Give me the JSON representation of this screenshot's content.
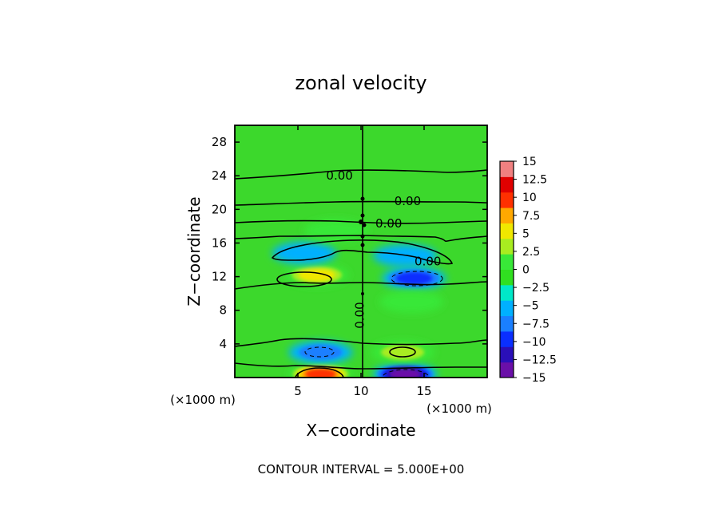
{
  "chart_data": {
    "type": "heatmap",
    "title": "zonal velocity",
    "xlabel": "X−coordinate",
    "ylabel": "Z−coordinate",
    "x_unit_label": "(×1000 m)",
    "y_unit_label": "(×1000 m)",
    "xlim": [
      0,
      20
    ],
    "ylim": [
      0,
      30
    ],
    "x_ticks": [
      5,
      10,
      15
    ],
    "y_ticks": [
      4,
      8,
      12,
      16,
      20,
      24,
      28
    ],
    "colorbar": {
      "levels": [
        -15,
        -12.5,
        -10,
        -7.5,
        -5,
        -2.5,
        0,
        2.5,
        5,
        7.5,
        10,
        12.5,
        15
      ],
      "tick_labels": [
        "15",
        "12.5",
        "10",
        "7.5",
        "5",
        "2.5",
        "0",
        "−2.5",
        "−5",
        "−7.5",
        "−10",
        "−12.5",
        "−15"
      ],
      "colors": [
        "#6a0fa8",
        "#2a0fb8",
        "#0a2fff",
        "#1a7fff",
        "#00b0ff",
        "#00e8c8",
        "#30e020",
        "#38e838",
        "#a8ec20",
        "#f0e800",
        "#ffa800",
        "#ff3000",
        "#e00000",
        "#f08080"
      ]
    },
    "background_color": "#3cd82c",
    "features": [
      {
        "type": "positive",
        "x": 6.5,
        "z": 12.2,
        "amplitude": 9.5
      },
      {
        "type": "negative",
        "x": 14.2,
        "z": 11.8,
        "amplitude": -8.0
      },
      {
        "type": "positive",
        "x": 6.8,
        "z": 0.4,
        "amplitude": 14.0
      },
      {
        "type": "negative",
        "x": 13.5,
        "z": 0.4,
        "amplitude": -13.0
      },
      {
        "type": "negative",
        "x": 6.8,
        "z": 3.0,
        "amplitude": -6.0
      },
      {
        "type": "positive",
        "x": 13.3,
        "z": 3.0,
        "amplitude": 6.5
      },
      {
        "type": "negative",
        "x": 5.5,
        "z": 14.8,
        "amplitude": -4.0
      },
      {
        "type": "negative",
        "x": 13.5,
        "z": 14.5,
        "amplitude": -3.5
      },
      {
        "type": "positive",
        "x": 8.0,
        "z": 17.5,
        "amplitude": 3.0
      },
      {
        "type": "positive",
        "x": 14.0,
        "z": 9.0,
        "amplitude": 2.5
      }
    ],
    "contour_labels": [
      {
        "text": "0.00",
        "x": 8.3,
        "z": 24.0
      },
      {
        "text": "0.00",
        "x": 13.7,
        "z": 21.0
      },
      {
        "text": "0.00",
        "x": 12.2,
        "z": 18.3
      },
      {
        "text": "0.00",
        "x": 15.3,
        "z": 13.8
      },
      {
        "text": "0.00",
        "x": 9.9,
        "z": 7.4
      }
    ],
    "footer": "CONTOUR INTERVAL = 5.000E+00"
  }
}
